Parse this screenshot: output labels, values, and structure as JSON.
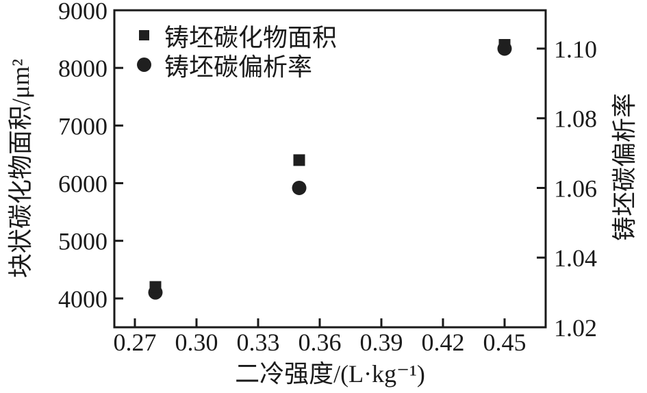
{
  "figure": {
    "background": "#ffffff",
    "text_color": "#1a1a1a",
    "marker_color": "#1f1f1f"
  },
  "chart_data": {
    "type": "scatter",
    "x": [
      0.28,
      0.35,
      0.45
    ],
    "series": [
      {
        "name": "铸坯碳化物面积",
        "marker": "square",
        "axis": "left",
        "values": [
          4200,
          6400,
          8400
        ],
        "color": "#1f1f1f",
        "marker_size": 17
      },
      {
        "name": "铸坯碳偏析率",
        "marker": "circle",
        "axis": "right",
        "values": [
          1.03,
          1.06,
          1.1
        ],
        "color": "#1f1f1f",
        "marker_size": 21
      }
    ],
    "x_axis": {
      "label": "二冷强度/(L·kg⁻¹)",
      "min": 0.26,
      "max": 0.47,
      "ticks": [
        0.27,
        0.3,
        0.33,
        0.36,
        0.39,
        0.42,
        0.45
      ],
      "tick_labels": [
        "0.27",
        "0.30",
        "0.33",
        "0.36",
        "0.39",
        "0.42",
        "0.45"
      ]
    },
    "y_left": {
      "label": "块状碳化物面积/μm²",
      "min": 3500,
      "max": 9000,
      "ticks": [
        4000,
        5000,
        6000,
        7000,
        8000,
        9000
      ],
      "tick_labels": [
        "4000",
        "5000",
        "6000",
        "7000",
        "8000",
        "9000"
      ]
    },
    "y_right": {
      "label": "铸坯碳偏析率",
      "min": 1.02,
      "max": 1.111,
      "ticks": [
        1.02,
        1.04,
        1.06,
        1.08,
        1.1
      ],
      "tick_labels": [
        "1.02",
        "1.04",
        "1.06",
        "1.08",
        "1.10"
      ]
    },
    "legend": {
      "position": "top-left",
      "entries": [
        "铸坯碳化物面积",
        "铸坯碳偏析率"
      ]
    },
    "grid": false,
    "frame": true
  }
}
